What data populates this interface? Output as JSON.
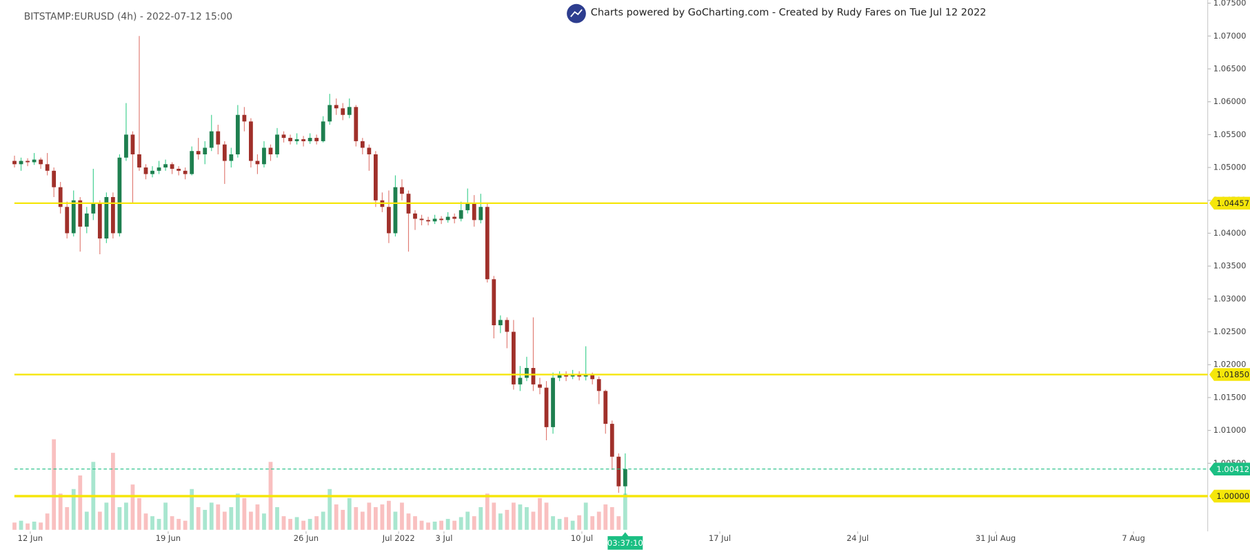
{
  "chart_data": {
    "type": "candlestick",
    "title": "BITSTAMP:EURUSD (4h) - 2022-07-12 15:00",
    "subtitle": "Charts powered by GoCharting.com - Created by Rudy Fares on Tue Jul 12 2022",
    "countdown": "03:37:10",
    "up_color": "#1e7f4f",
    "down_color": "#a0302a",
    "volume_up_color": "#a8e6cf",
    "volume_down_color": "#f9c0c0",
    "level_color": "#f5e60a",
    "price_color": "#1bbf83",
    "ohlc": [
      [
        1.051,
        1.0518,
        1.05,
        1.0505
      ],
      [
        1.0505,
        1.0515,
        1.0495,
        1.051
      ],
      [
        1.051,
        1.0514,
        1.0502,
        1.0508
      ],
      [
        1.0508,
        1.0522,
        1.0504,
        1.0512
      ],
      [
        1.0512,
        1.0515,
        1.0498,
        1.0505
      ],
      [
        1.0505,
        1.0522,
        1.0488,
        1.0495
      ],
      [
        1.0495,
        1.05,
        1.0455,
        1.047
      ],
      [
        1.047,
        1.0478,
        1.043,
        1.044
      ],
      [
        1.044,
        1.0448,
        1.0392,
        1.04
      ],
      [
        1.04,
        1.0465,
        1.0395,
        1.045
      ],
      [
        1.045,
        1.0455,
        1.0372,
        1.041
      ],
      [
        1.041,
        1.044,
        1.04,
        1.043
      ],
      [
        1.043,
        1.0498,
        1.042,
        1.0445
      ],
      [
        1.0445,
        1.045,
        1.0368,
        1.0392
      ],
      [
        1.0392,
        1.0462,
        1.0385,
        1.0455
      ],
      [
        1.0455,
        1.0462,
        1.0392,
        1.04
      ],
      [
        1.04,
        1.052,
        1.0395,
        1.0515
      ],
      [
        1.0515,
        1.0598,
        1.051,
        1.055
      ],
      [
        1.055,
        1.0555,
        1.0445,
        1.052
      ],
      [
        1.052,
        1.07,
        1.0495,
        1.05
      ],
      [
        1.05,
        1.0505,
        1.0482,
        1.049
      ],
      [
        1.049,
        1.0502,
        1.0485,
        1.0495
      ],
      [
        1.0495,
        1.051,
        1.049,
        1.05
      ],
      [
        1.05,
        1.0512,
        1.0495,
        1.0505
      ],
      [
        1.0505,
        1.0508,
        1.049,
        1.0498
      ],
      [
        1.0498,
        1.0502,
        1.0488,
        1.0495
      ],
      [
        1.0495,
        1.05,
        1.0482,
        1.049
      ],
      [
        1.049,
        1.0532,
        1.0488,
        1.0525
      ],
      [
        1.0525,
        1.0545,
        1.0512,
        1.052
      ],
      [
        1.052,
        1.054,
        1.0505,
        1.053
      ],
      [
        1.053,
        1.058,
        1.0525,
        1.0555
      ],
      [
        1.0555,
        1.0565,
        1.052,
        1.0535
      ],
      [
        1.0535,
        1.054,
        1.0475,
        1.051
      ],
      [
        1.051,
        1.053,
        1.05,
        1.052
      ],
      [
        1.052,
        1.0595,
        1.0515,
        1.058
      ],
      [
        1.058,
        1.0592,
        1.0555,
        1.057
      ],
      [
        1.057,
        1.0575,
        1.05,
        1.051
      ],
      [
        1.051,
        1.052,
        1.049,
        1.0505
      ],
      [
        1.0505,
        1.054,
        1.05,
        1.053
      ],
      [
        1.053,
        1.0535,
        1.051,
        1.052
      ],
      [
        1.052,
        1.056,
        1.0515,
        1.055
      ],
      [
        1.055,
        1.0555,
        1.0538,
        1.0545
      ],
      [
        1.0545,
        1.055,
        1.0535,
        1.054
      ],
      [
        1.054,
        1.0552,
        1.0535,
        1.0543
      ],
      [
        1.0543,
        1.0548,
        1.0532,
        1.054
      ],
      [
        1.054,
        1.0552,
        1.0536,
        1.0545
      ],
      [
        1.0545,
        1.055,
        1.0535,
        1.054
      ],
      [
        1.054,
        1.0578,
        1.0538,
        1.057
      ],
      [
        1.057,
        1.0612,
        1.0565,
        1.0595
      ],
      [
        1.0595,
        1.0605,
        1.058,
        1.059
      ],
      [
        1.059,
        1.0598,
        1.0572,
        1.058
      ],
      [
        1.058,
        1.0605,
        1.0575,
        1.0592
      ],
      [
        1.0592,
        1.0595,
        1.0532,
        1.054
      ],
      [
        1.054,
        1.0545,
        1.052,
        1.053
      ],
      [
        1.053,
        1.0535,
        1.0495,
        1.052
      ],
      [
        1.052,
        1.0525,
        1.044,
        1.045
      ],
      [
        1.045,
        1.0462,
        1.0432,
        1.044
      ],
      [
        1.044,
        1.0465,
        1.0385,
        1.04
      ],
      [
        1.04,
        1.0488,
        1.0395,
        1.047
      ],
      [
        1.047,
        1.0482,
        1.045,
        1.046
      ],
      [
        1.046,
        1.0465,
        1.0372,
        1.043
      ],
      [
        1.043,
        1.0435,
        1.0405,
        1.0422
      ],
      [
        1.0422,
        1.0428,
        1.0412,
        1.042
      ],
      [
        1.042,
        1.0425,
        1.0412,
        1.0418
      ],
      [
        1.0418,
        1.0428,
        1.0414,
        1.0422
      ],
      [
        1.0422,
        1.0426,
        1.0414,
        1.042
      ],
      [
        1.042,
        1.0432,
        1.0416,
        1.0425
      ],
      [
        1.0425,
        1.043,
        1.0415,
        1.0422
      ],
      [
        1.0422,
        1.0448,
        1.0418,
        1.0435
      ],
      [
        1.0435,
        1.0468,
        1.043,
        1.0445
      ],
      [
        1.0445,
        1.0458,
        1.041,
        1.042
      ],
      [
        1.042,
        1.046,
        1.0415,
        1.044
      ],
      [
        1.044,
        1.0445,
        1.0325,
        1.033
      ],
      [
        1.033,
        1.0335,
        1.024,
        1.026
      ],
      [
        1.026,
        1.0275,
        1.0248,
        1.0268
      ],
      [
        1.0268,
        1.0272,
        1.0225,
        1.025
      ],
      [
        1.025,
        1.0268,
        1.0162,
        1.017
      ],
      [
        1.017,
        1.0198,
        1.016,
        1.018
      ],
      [
        1.018,
        1.0212,
        1.0175,
        1.0195
      ],
      [
        1.0195,
        1.0272,
        1.016,
        1.017
      ],
      [
        1.017,
        1.018,
        1.0155,
        1.0165
      ],
      [
        1.0165,
        1.0175,
        1.0085,
        1.0105
      ],
      [
        1.0105,
        1.0188,
        1.0095,
        1.018
      ],
      [
        1.018,
        1.019,
        1.0175,
        1.0185
      ],
      [
        1.0185,
        1.019,
        1.0175,
        1.0182
      ],
      [
        1.0182,
        1.0192,
        1.0178,
        1.0186
      ],
      [
        1.0186,
        1.019,
        1.0176,
        1.0182
      ],
      [
        1.0182,
        1.0228,
        1.0176,
        1.0184
      ],
      [
        1.0184,
        1.0188,
        1.017,
        1.0178
      ],
      [
        1.0178,
        1.0182,
        1.014,
        1.016
      ],
      [
        1.016,
        1.0162,
        1.0095,
        1.011
      ],
      [
        1.011,
        1.0115,
        1.004,
        1.006
      ],
      [
        1.006,
        1.0065,
        1.0005,
        1.0015
      ],
      [
        1.0015,
        1.0065,
        1.0,
        1.00412
      ]
    ],
    "volume": [
      8,
      10,
      7,
      9,
      8,
      18,
      100,
      40,
      25,
      45,
      60,
      20,
      75,
      20,
      30,
      85,
      25,
      30,
      50,
      35,
      18,
      15,
      12,
      30,
      15,
      12,
      10,
      45,
      25,
      22,
      30,
      28,
      20,
      25,
      40,
      35,
      20,
      28,
      18,
      75,
      25,
      15,
      12,
      14,
      10,
      12,
      15,
      20,
      45,
      28,
      22,
      35,
      25,
      20,
      30,
      25,
      28,
      32,
      20,
      30,
      18,
      15,
      10,
      8,
      9,
      10,
      12,
      10,
      14,
      20,
      15,
      25,
      40,
      30,
      18,
      22,
      30,
      28,
      25,
      20,
      35,
      30,
      15,
      12,
      14,
      10,
      16,
      30,
      15,
      20,
      28,
      25,
      15,
      40
    ],
    "volume_lim": [
      0,
      110
    ],
    "levels": [
      {
        "value": 1.04457,
        "label": "1.04457"
      },
      {
        "value": 1.0185,
        "label": "1.01850"
      },
      {
        "value": 1.0,
        "label": "1.00000"
      }
    ],
    "xlim": [
      -2.2,
      181.7
    ],
    "xticks": [
      {
        "value": 2.4,
        "label": "12 Jun"
      },
      {
        "value": 23.4,
        "label": "19 Jun"
      },
      {
        "value": 44.4,
        "label": "26 Jun"
      },
      {
        "value": 58.5,
        "label": "Jul 2022"
      },
      {
        "value": 65.4,
        "label": "3 Jul"
      },
      {
        "value": 86.4,
        "label": "10 Jul"
      },
      {
        "value": 107.4,
        "label": "17 Jul"
      },
      {
        "value": 128.4,
        "label": "24 Jul"
      },
      {
        "value": 149.4,
        "label": "31 Jul Aug"
      },
      {
        "value": 170.4,
        "label": "7 Aug"
      }
    ],
    "ylim": [
      0.99464,
      1.07548
    ],
    "yticks": [
      {
        "value": 1.005,
        "label": "1.00500"
      },
      {
        "value": 1.01,
        "label": "1.01000"
      },
      {
        "value": 1.015,
        "label": "1.01500"
      },
      {
        "value": 1.02,
        "label": "1.02000"
      },
      {
        "value": 1.025,
        "label": "1.02500"
      },
      {
        "value": 1.03,
        "label": "1.03000"
      },
      {
        "value": 1.035,
        "label": "1.03500"
      },
      {
        "value": 1.04,
        "label": "1.04000"
      },
      {
        "value": 1.045,
        "label": "1.04500"
      },
      {
        "value": 1.05,
        "label": "1.05000"
      },
      {
        "value": 1.055,
        "label": "1.05500"
      },
      {
        "value": 1.06,
        "label": "1.06000"
      },
      {
        "value": 1.065,
        "label": "1.06500"
      },
      {
        "value": 1.07,
        "label": "1.07000"
      },
      {
        "value": 1.075,
        "label": "1.07500"
      }
    ]
  }
}
